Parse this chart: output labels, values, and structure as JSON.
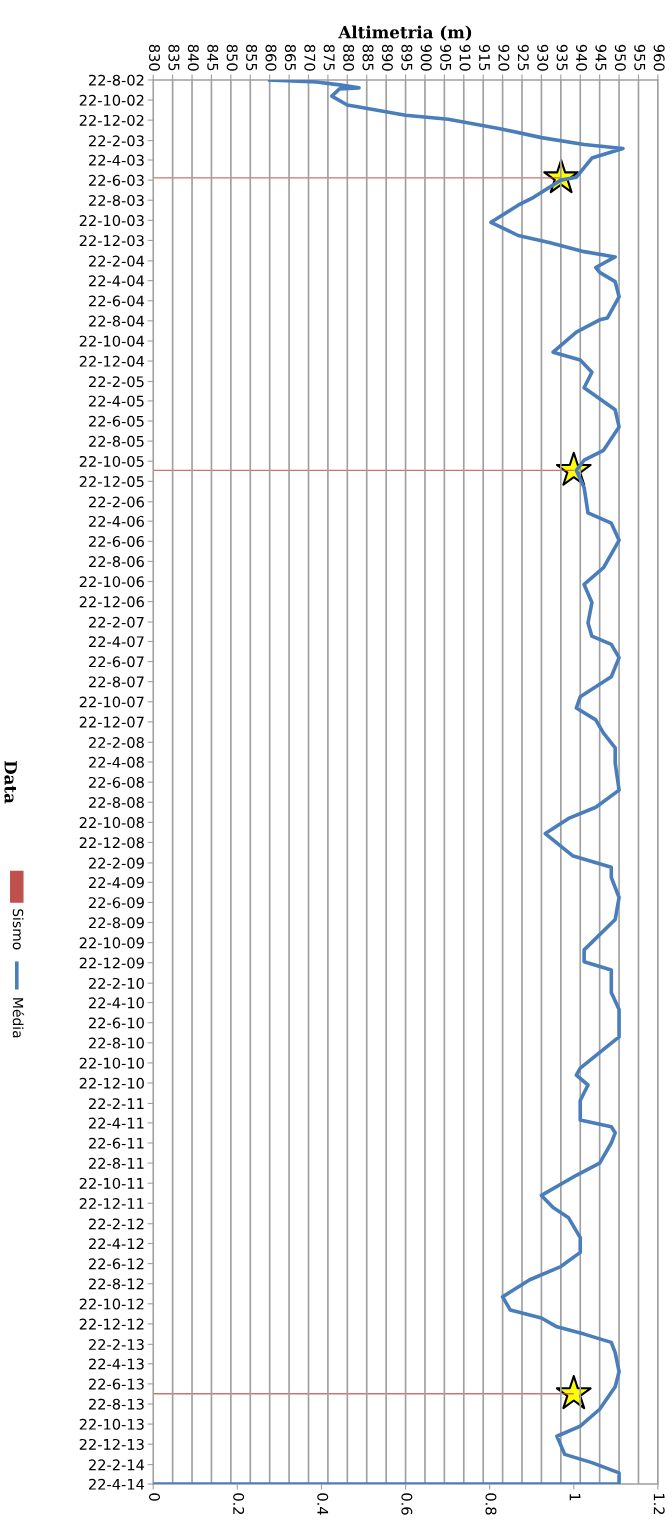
{
  "chart_data": {
    "type": "line",
    "orientation": "horizontal",
    "x2label": "Altimetria (m)",
    "ylabel": "Data",
    "x2lim": [
      830,
      960
    ],
    "x2ticks": [
      830,
      835,
      840,
      845,
      850,
      855,
      860,
      865,
      870,
      875,
      880,
      885,
      890,
      895,
      900,
      905,
      910,
      915,
      920,
      925,
      930,
      935,
      940,
      945,
      950,
      955,
      960
    ],
    "xlim": [
      0,
      1.2
    ],
    "xticks": [
      0,
      0.2,
      0.4,
      0.6,
      0.8,
      1,
      1.2
    ],
    "ylim": [
      "2014-04-22",
      "2002-08-22"
    ],
    "yticks": [
      {
        "value": "2002-08-22",
        "label": "22-8-02"
      },
      {
        "value": "2002-10-22",
        "label": "22-10-02"
      },
      {
        "value": "2002-12-22",
        "label": "22-12-02"
      },
      {
        "value": "2003-02-22",
        "label": "22-2-03"
      },
      {
        "value": "2003-04-22",
        "label": "22-4-03"
      },
      {
        "value": "2003-06-22",
        "label": "22-6-03"
      },
      {
        "value": "2003-08-22",
        "label": "22-8-03"
      },
      {
        "value": "2003-10-22",
        "label": "22-10-03"
      },
      {
        "value": "2003-12-22",
        "label": "22-12-03"
      },
      {
        "value": "2004-02-22",
        "label": "22-2-04"
      },
      {
        "value": "2004-04-22",
        "label": "22-4-04"
      },
      {
        "value": "2004-06-22",
        "label": "22-6-04"
      },
      {
        "value": "2004-08-22",
        "label": "22-8-04"
      },
      {
        "value": "2004-10-22",
        "label": "22-10-04"
      },
      {
        "value": "2004-12-22",
        "label": "22-12-04"
      },
      {
        "value": "2005-02-22",
        "label": "22-2-05"
      },
      {
        "value": "2005-04-22",
        "label": "22-4-05"
      },
      {
        "value": "2005-06-22",
        "label": "22-6-05"
      },
      {
        "value": "2005-08-22",
        "label": "22-8-05"
      },
      {
        "value": "2005-10-22",
        "label": "22-10-05"
      },
      {
        "value": "2005-12-22",
        "label": "22-12-05"
      },
      {
        "value": "2006-02-22",
        "label": "22-2-06"
      },
      {
        "value": "2006-04-22",
        "label": "22-4-06"
      },
      {
        "value": "2006-06-22",
        "label": "22-6-06"
      },
      {
        "value": "2006-08-22",
        "label": "22-8-06"
      },
      {
        "value": "2006-10-22",
        "label": "22-10-06"
      },
      {
        "value": "2006-12-22",
        "label": "22-12-06"
      },
      {
        "value": "2007-02-22",
        "label": "22-2-07"
      },
      {
        "value": "2007-04-22",
        "label": "22-4-07"
      },
      {
        "value": "2007-06-22",
        "label": "22-6-07"
      },
      {
        "value": "2007-08-22",
        "label": "22-8-07"
      },
      {
        "value": "2007-10-22",
        "label": "22-10-07"
      },
      {
        "value": "2007-12-22",
        "label": "22-12-07"
      },
      {
        "value": "2008-02-22",
        "label": "22-2-08"
      },
      {
        "value": "2008-04-22",
        "label": "22-4-08"
      },
      {
        "value": "2008-06-22",
        "label": "22-6-08"
      },
      {
        "value": "2008-08-22",
        "label": "22-8-08"
      },
      {
        "value": "2008-10-22",
        "label": "22-10-08"
      },
      {
        "value": "2008-12-22",
        "label": "22-12-08"
      },
      {
        "value": "2009-02-22",
        "label": "22-2-09"
      },
      {
        "value": "2009-04-22",
        "label": "22-4-09"
      },
      {
        "value": "2009-06-22",
        "label": "22-6-09"
      },
      {
        "value": "2009-08-22",
        "label": "22-8-09"
      },
      {
        "value": "2009-10-22",
        "label": "22-10-09"
      },
      {
        "value": "2009-12-22",
        "label": "22-12-09"
      },
      {
        "value": "2010-02-22",
        "label": "22-2-10"
      },
      {
        "value": "2010-04-22",
        "label": "22-4-10"
      },
      {
        "value": "2010-06-22",
        "label": "22-6-10"
      },
      {
        "value": "2010-08-22",
        "label": "22-8-10"
      },
      {
        "value": "2010-10-22",
        "label": "22-10-10"
      },
      {
        "value": "2010-12-22",
        "label": "22-12-10"
      },
      {
        "value": "2011-02-22",
        "label": "22-2-11"
      },
      {
        "value": "2011-04-22",
        "label": "22-4-11"
      },
      {
        "value": "2011-06-22",
        "label": "22-6-11"
      },
      {
        "value": "2011-08-22",
        "label": "22-8-11"
      },
      {
        "value": "2011-10-22",
        "label": "22-10-11"
      },
      {
        "value": "2011-12-22",
        "label": "22-12-11"
      },
      {
        "value": "2012-02-22",
        "label": "22-2-12"
      },
      {
        "value": "2012-04-22",
        "label": "22-4-12"
      },
      {
        "value": "2012-06-22",
        "label": "22-6-12"
      },
      {
        "value": "2012-08-22",
        "label": "22-8-12"
      },
      {
        "value": "2012-10-22",
        "label": "22-10-12"
      },
      {
        "value": "2012-12-22",
        "label": "22-12-12"
      },
      {
        "value": "2013-02-22",
        "label": "22-2-13"
      },
      {
        "value": "2013-04-22",
        "label": "22-4-13"
      },
      {
        "value": "2013-06-22",
        "label": "22-6-13"
      },
      {
        "value": "2013-08-22",
        "label": "22-8-13"
      },
      {
        "value": "2013-10-22",
        "label": "22-10-13"
      },
      {
        "value": "2013-12-22",
        "label": "22-12-13"
      },
      {
        "value": "2014-02-22",
        "label": "22-2-14"
      },
      {
        "value": "2014-04-22",
        "label": "22-4-14"
      }
    ],
    "grid": "x",
    "legend": "left",
    "series": [
      {
        "name": "Sismo",
        "type": "bar",
        "color": "#c0504d",
        "x": [
          "2003-06-15",
          "2005-11-19",
          "2013-07-22"
        ],
        "values": [
          0.97,
          1,
          1
        ]
      },
      {
        "type": "scatter",
        "marker": "star",
        "color": "#ffff00",
        "x": [
          "2003-06-15",
          "2005-11-19",
          "2013-07-22"
        ],
        "values": [
          0.97,
          1,
          1
        ]
      },
      {
        "name": "Média",
        "axis": "x2",
        "color": "#4a7ebb",
        "x": [
          "2002-08-22",
          "2002-08-28",
          "2002-09-06",
          "2002-09-15",
          "2002-09-18",
          "2002-10-10",
          "2002-11-06",
          "2002-11-12",
          "2002-12-07",
          "2002-12-19",
          "2003-01-16",
          "2003-02-13",
          "2003-03-06",
          "2003-03-18",
          "2003-04-16",
          "2003-06-13",
          "2003-06-22",
          "2003-08-13",
          "2003-09-06",
          "2003-10-28",
          "2003-12-07",
          "2003-12-28",
          "2004-01-25",
          "2004-02-10",
          "2004-03-13",
          "2004-03-28",
          "2004-04-25",
          "2004-06-10",
          "2004-08-13",
          "2004-08-19",
          "2004-09-25",
          "2004-11-25",
          "2004-12-19",
          "2005-01-25",
          "2005-03-13",
          "2005-05-19",
          "2005-07-10",
          "2005-09-19",
          "2005-10-19",
          "2005-11-19",
          "2006-01-10",
          "2006-03-28",
          "2006-04-28",
          "2006-06-19",
          "2006-09-10",
          "2006-10-31",
          "2006-12-25",
          "2007-02-25",
          "2007-04-06",
          "2007-05-01",
          "2007-06-10",
          "2007-08-07",
          "2007-10-07",
          "2007-11-10",
          "2007-12-16",
          "2008-01-25",
          "2008-03-10",
          "2008-04-25",
          "2008-07-16",
          "2008-09-06",
          "2008-10-10",
          "2008-11-25",
          "2009-01-31",
          "2009-03-07",
          "2009-04-07",
          "2009-06-07",
          "2009-08-13",
          "2009-11-13",
          "2009-12-19",
          "2010-01-13",
          "2010-03-22",
          "2010-05-13",
          "2010-08-04",
          "2010-11-07",
          "2010-11-28",
          "2010-12-28",
          "2011-02-13",
          "2011-04-13",
          "2011-05-04",
          "2011-05-22",
          "2011-06-22",
          "2011-08-22",
          "2011-09-28",
          "2011-11-28",
          "2012-01-04",
          "2012-02-04",
          "2012-04-04",
          "2012-05-19",
          "2012-07-01",
          "2012-08-10",
          "2012-10-01",
          "2012-11-10",
          "2012-12-04",
          "2012-12-31",
          "2013-01-22",
          "2013-02-16",
          "2013-03-19",
          "2013-05-16",
          "2013-07-01",
          "2013-09-07",
          "2013-10-28",
          "2013-11-28",
          "2014-01-22",
          "2014-02-16",
          "2014-03-19",
          "2014-04-22",
          "2014-04-22"
        ],
        "values": [
          860,
          872,
          878,
          883,
          878,
          876,
          880,
          883,
          895,
          906,
          919,
          930,
          941,
          951,
          943,
          939,
          935,
          928,
          924,
          917,
          924,
          932,
          941,
          949,
          944,
          945,
          949,
          950,
          947,
          945,
          939,
          933,
          940,
          943,
          941,
          949,
          950,
          946,
          941,
          939,
          941,
          942,
          948,
          950,
          946,
          941,
          943,
          942,
          943,
          948,
          950,
          948,
          940,
          939,
          944,
          946,
          949,
          949,
          950,
          944,
          937,
          931,
          938,
          948,
          948,
          950,
          949,
          941,
          941,
          948,
          948,
          950,
          950,
          940,
          939,
          942,
          940,
          940,
          948,
          949,
          948,
          945,
          939,
          930,
          933,
          937,
          940,
          940,
          935,
          927,
          920,
          922,
          930,
          934,
          941,
          948,
          949,
          950,
          949,
          945,
          940,
          934,
          936,
          943,
          950,
          950,
          830
        ]
      }
    ]
  }
}
